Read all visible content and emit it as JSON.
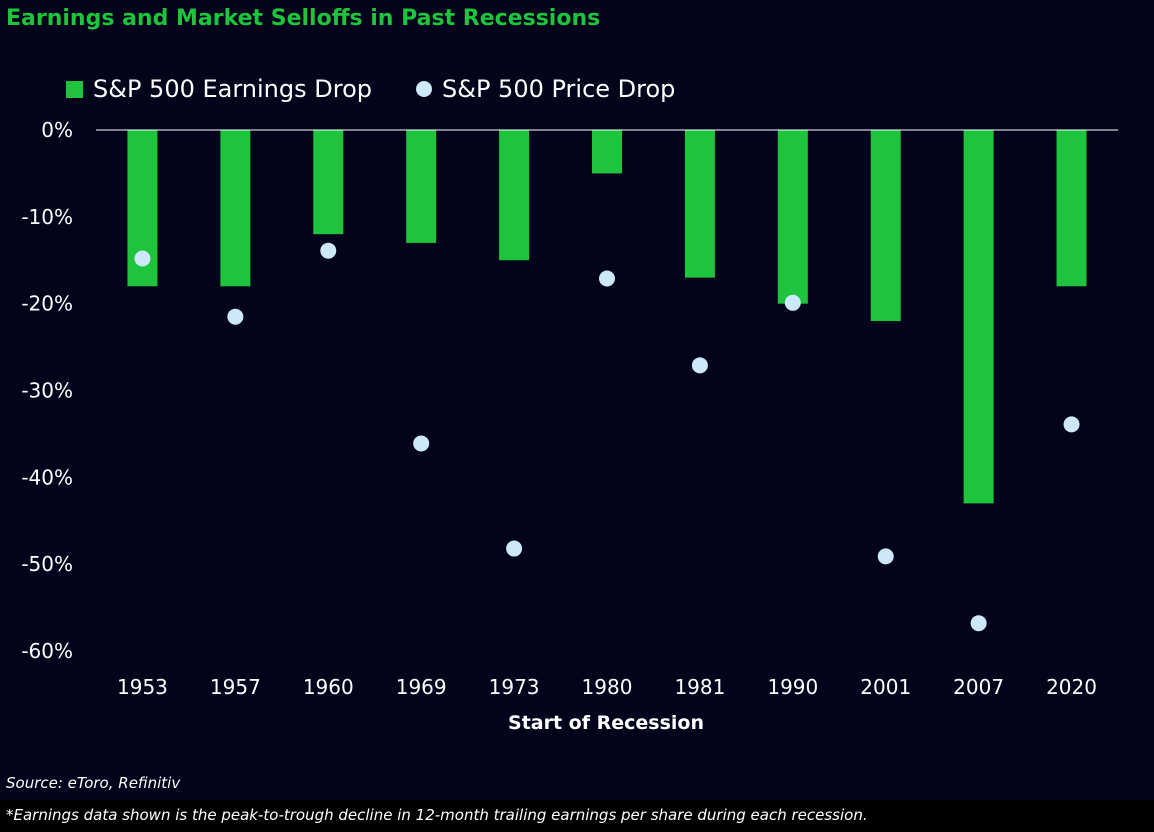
{
  "chart_data": {
    "type": "bar",
    "title": "Earnings and Market Selloffs in Past Recessions",
    "xlabel": "Start of Recession",
    "ylabel": "",
    "categories": [
      "1953",
      "1957",
      "1960",
      "1969",
      "1973",
      "1980",
      "1981",
      "1990",
      "2001",
      "2007",
      "2020"
    ],
    "series": [
      {
        "name": "S&P 500 Earnings Drop",
        "type": "bar",
        "color": "#1ec43c",
        "values": [
          -18,
          -18,
          -12,
          -13,
          -15,
          -5,
          -17,
          -20,
          -22,
          -43,
          -18
        ]
      },
      {
        "name": "S&P 500 Price Drop",
        "type": "scatter",
        "color": "#cde8fb",
        "values": [
          -14.8,
          -21.5,
          -13.9,
          -36.1,
          -48.2,
          -17.1,
          -27.1,
          -19.9,
          -49.1,
          -56.8,
          -33.9
        ]
      }
    ],
    "ylim": [
      -60,
      0
    ],
    "yticks": [
      0,
      -10,
      -20,
      -30,
      -40,
      -50,
      -60
    ],
    "ytick_labels": [
      "0%",
      "-10%",
      "-20%",
      "-30%",
      "-40%",
      "-50%",
      "-60%"
    ],
    "grid": false,
    "legend_position": "top-left",
    "source": "Source: eToro, Refinitiv",
    "footnote": "*Earnings data shown is the peak-to-trough decline in 12-month trailing earnings per share during each recession."
  },
  "colors": {
    "background": "#03031c",
    "title": "#1ec43c",
    "text": "#ffffff",
    "zero_line": "#ffffff"
  }
}
